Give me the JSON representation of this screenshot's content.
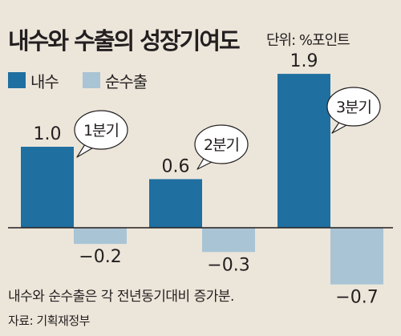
{
  "title": "내수와 수출의 성장기여도",
  "unit": "단위: %포인트",
  "footnote": "내수와 순수출은 각 전년동기대비 증가분.",
  "source": "자료: 기획재정부",
  "colors": {
    "domestic": "#1f6fa0",
    "net_exports": "#a9c4d4",
    "axis": "#231f20"
  },
  "chart_data": {
    "type": "bar",
    "categories": [
      "1분기",
      "2분기",
      "3분기"
    ],
    "series": [
      {
        "name": "내수",
        "values": [
          1.0,
          0.6,
          1.9
        ],
        "labels": [
          "1.0",
          "0.6",
          "1.9"
        ]
      },
      {
        "name": "순수출",
        "values": [
          -0.2,
          -0.3,
          -0.7
        ],
        "labels": [
          "−0.2",
          "−0.3",
          "−0.7"
        ]
      }
    ],
    "title": "내수와 수출의 성장기여도",
    "ylabel": "%포인트",
    "legend": "top-left",
    "grid": false
  }
}
